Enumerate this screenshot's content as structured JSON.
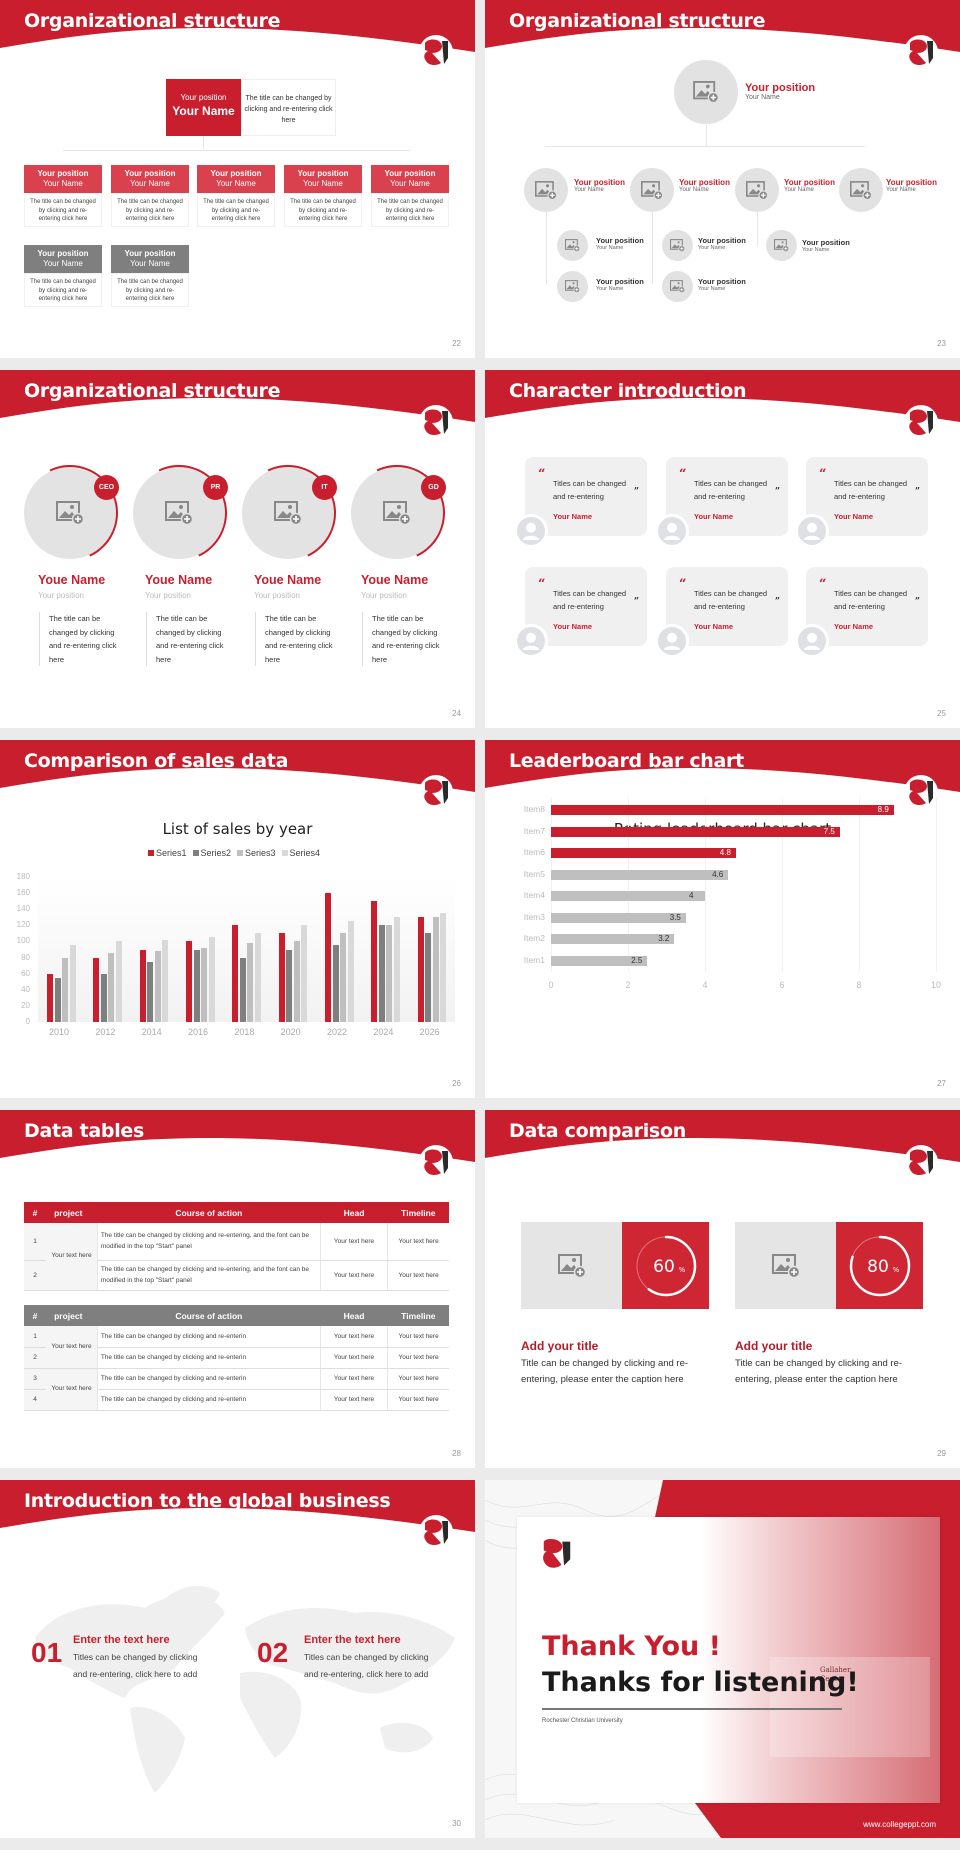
{
  "theme": {
    "accent": "#c81e2d",
    "gray_dark": "#7f7f7f",
    "gray_light": "#e3e3e3",
    "background": "#ebebeb"
  },
  "slides": [
    {
      "page": "22",
      "title": "Organizational structure",
      "top": {
        "position": "Your position",
        "name": "Your Name",
        "desc": "The title can be changed by clicking and re-entering click here"
      },
      "nodes": [
        {
          "position": "Your position",
          "name": "Your Name",
          "desc": "The title can be changed by clicking and re-entering click here",
          "color": "red"
        },
        {
          "position": "Your position",
          "name": "Your Name",
          "desc": "The title can be changed by clicking and re-entering click here",
          "color": "red"
        },
        {
          "position": "Your position",
          "name": "Your Name",
          "desc": "The title can be changed by clicking and re-entering click here",
          "color": "red"
        },
        {
          "position": "Your position",
          "name": "Your Name",
          "desc": "The title can be changed by clicking and re-entering click here",
          "color": "red"
        },
        {
          "position": "Your position",
          "name": "Your Name",
          "desc": "The title can be changed by clicking and re-entering click here",
          "color": "red"
        },
        {
          "position": "Your position",
          "name": "Your Name",
          "desc": "The title can be changed by clicking and re-entering click here",
          "color": "gray"
        },
        {
          "position": "Your position",
          "name": "Your Name",
          "desc": "The title can be changed by clicking and re-entering click here",
          "color": "gray"
        }
      ]
    },
    {
      "page": "23",
      "title": "Organizational structure",
      "top": {
        "position": "Your position",
        "name": "Your Name"
      },
      "level2": [
        {
          "position": "Your position",
          "name": "Your Name"
        },
        {
          "position": "Your position",
          "name": "Your Name"
        },
        {
          "position": "Your position",
          "name": "Your Name"
        },
        {
          "position": "Your position",
          "name": "Your Name"
        }
      ],
      "level3": [
        {
          "position": "Your position",
          "name": "Your Name"
        },
        {
          "position": "Your position",
          "name": "Your Name"
        },
        {
          "position": "Your position",
          "name": "Your Name"
        },
        {
          "position": "Your position",
          "name": "Your Name"
        },
        {
          "position": "Your position",
          "name": "Your Name"
        }
      ]
    },
    {
      "page": "24",
      "title": "Organizational structure",
      "members": [
        {
          "badge": "CEO",
          "name": "Youe Name",
          "position": "Your position",
          "desc": "The title can be changed by clicking and re-entering click here"
        },
        {
          "badge": "PR",
          "name": "Youe Name",
          "position": "Your position",
          "desc": "The title can be changed by clicking and re-entering click here"
        },
        {
          "badge": "IT",
          "name": "Youe Name",
          "position": "Your position",
          "desc": "The title can be changed by clicking and re-entering click here"
        },
        {
          "badge": "GD",
          "name": "Youe Name",
          "position": "Your position",
          "desc": "The title can be changed by clicking and re-entering click here"
        }
      ]
    },
    {
      "page": "25",
      "title": "Character introduction",
      "cards": [
        {
          "quote": "Titles can be changed and re-entering",
          "name": "Your Name"
        },
        {
          "quote": "Titles can be changed and re-entering",
          "name": "Your Name"
        },
        {
          "quote": "Titles can be changed and re-entering",
          "name": "Your Name"
        },
        {
          "quote": "Titles can be changed and re-entering",
          "name": "Your Name"
        },
        {
          "quote": "Titles can be changed and re-entering",
          "name": "Your Name"
        },
        {
          "quote": "Titles can be changed and re-entering",
          "name": "Your Name"
        }
      ],
      "open_quote": "“",
      "close_quote": "”"
    },
    {
      "page": "26",
      "title": "Comparison of sales data"
    },
    {
      "page": "27",
      "title": "Leaderboard bar chart"
    },
    {
      "page": "28",
      "title": "Data tables",
      "table1": {
        "headers": [
          "#",
          "project",
          "Course of action",
          "Head",
          "Timeline"
        ],
        "project": "Your text here",
        "rows": [
          {
            "num": "1",
            "action": "The title can be changed by clicking and re-entering, and the font can be modified in the top \"Start\" panel",
            "head": "Your text here",
            "timeline": "Your text here"
          },
          {
            "num": "2",
            "action": "The title can be changed by clicking and re-entering, and the font can be modified in the top \"Start\" panel",
            "head": "Your text here",
            "timeline": "Your text here"
          }
        ]
      },
      "table2": {
        "headers": [
          "#",
          "project",
          "Course of action",
          "Head",
          "Timeline"
        ],
        "projects": [
          "Your text here",
          "Your text here"
        ],
        "rows": [
          {
            "num": "1",
            "action": "The title can be changed by clicking and re-enterin",
            "head": "Your text here",
            "timeline": "Your text here"
          },
          {
            "num": "2",
            "action": "The title can be changed by clicking and re-enterin",
            "head": "Your text here",
            "timeline": "Your text here"
          },
          {
            "num": "3",
            "action": "The title can be changed by clicking and re-enterin",
            "head": "Your text here",
            "timeline": "Your text here"
          },
          {
            "num": "4",
            "action": "The title can be changed by clicking and re-enterin",
            "head": "Your text here",
            "timeline": "Your text here"
          }
        ]
      }
    },
    {
      "page": "29",
      "title": "Data comparison",
      "items": [
        {
          "percent": "60",
          "unit": "%",
          "value": 60,
          "title": "Add your title",
          "desc": "Title can be changed by clicking and re-entering, please enter the caption here"
        },
        {
          "percent": "80",
          "unit": "%",
          "value": 80,
          "title": "Add your title",
          "desc": "Title can be changed by clicking and re-entering, please enter the caption here"
        }
      ]
    },
    {
      "page": "30",
      "title": "Introduction to the global business",
      "items": [
        {
          "num": "01",
          "title": "Enter the text here",
          "desc": "Titles can be changed by clicking and re-entering, click here to add"
        },
        {
          "num": "02",
          "title": "Enter the text here",
          "desc": "Titles can be changed by clicking and re-entering, click here to add"
        }
      ]
    },
    {
      "title_red": "Thank You !",
      "title_black": "Thanks for listening!",
      "university": "Rochester Christian University",
      "url": "www.collegeppt.com",
      "sign_text": "Gallaher Center"
    }
  ],
  "chart_data": [
    {
      "type": "bar",
      "title": "List of sales by year",
      "categories": [
        "2010",
        "2012",
        "2014",
        "2016",
        "2018",
        "2020",
        "2022",
        "2024",
        "2026"
      ],
      "series": [
        {
          "name": "Series1",
          "color": "#c81e2d",
          "values": [
            60,
            80,
            90,
            100,
            120,
            110,
            160,
            150,
            130
          ]
        },
        {
          "name": "Series2",
          "color": "#7f7f7f",
          "values": [
            55,
            60,
            75,
            90,
            80,
            90,
            96,
            120,
            110
          ]
        },
        {
          "name": "Series3",
          "color": "#bfbfbf",
          "values": [
            80,
            86,
            88,
            92,
            98,
            100,
            110,
            120,
            130
          ]
        },
        {
          "name": "Series4",
          "color": "#d9d9d9",
          "values": [
            95,
            100,
            102,
            105,
            110,
            120,
            126,
            130,
            135
          ]
        }
      ],
      "yticks": [
        "0",
        "20",
        "40",
        "60",
        "80",
        "100",
        "120",
        "140",
        "160",
        "180"
      ],
      "ylim": [
        0,
        180
      ],
      "legend_position": "top",
      "xlabel": "",
      "ylabel": ""
    },
    {
      "type": "bar",
      "orientation": "horizontal",
      "title": "Rating leaderboard bar chart",
      "categories": [
        "Item8",
        "Item7",
        "Item6",
        "Item5",
        "Item4",
        "Item3",
        "Item2",
        "Item1"
      ],
      "values": [
        8.9,
        7.5,
        4.8,
        4.6,
        4,
        3.5,
        3.2,
        2.5
      ],
      "labels": [
        "8.9",
        "7.5",
        "4.8",
        "4.6",
        "4",
        "3.5",
        "3.2",
        "2.5"
      ],
      "highlight": [
        true,
        true,
        true,
        false,
        false,
        false,
        false,
        false
      ],
      "xticks": [
        "0",
        "2",
        "4",
        "6",
        "8",
        "10"
      ],
      "xlim": [
        0,
        10
      ],
      "grid": "vertical"
    }
  ]
}
